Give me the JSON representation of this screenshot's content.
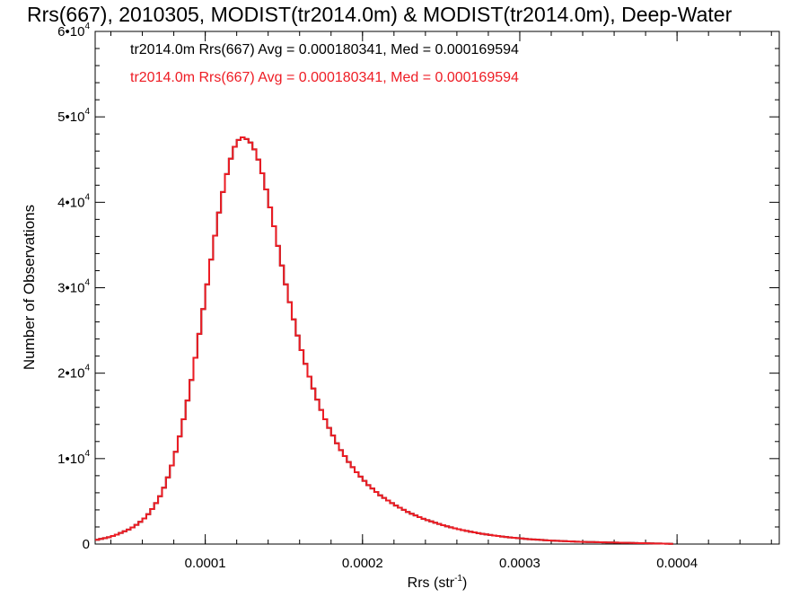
{
  "chart_data": {
    "type": "histogram",
    "title": "Rrs(667), 2010305, MODIST(tr2014.0m) & MODIST(tr2014.0m), Deep-Water",
    "xlabel_main": "Rrs (str",
    "xlabel_sup": "-1",
    "xlabel_close": ")",
    "ylabel": "Number of Observations",
    "xlim": [
      3e-05,
      0.000465
    ],
    "ylim": [
      0,
      60000
    ],
    "xticks": [
      {
        "value": 0.0001,
        "label": "0.0001"
      },
      {
        "value": 0.0002,
        "label": "0.0002"
      },
      {
        "value": 0.0003,
        "label": "0.0003"
      },
      {
        "value": 0.0004,
        "label": "0.0004"
      }
    ],
    "yticks": [
      {
        "value": 0,
        "base": "0",
        "exp": ""
      },
      {
        "value": 10000,
        "base": "1•10",
        "exp": "4"
      },
      {
        "value": 20000,
        "base": "2•10",
        "exp": "4"
      },
      {
        "value": 30000,
        "base": "3•10",
        "exp": "4"
      },
      {
        "value": 40000,
        "base": "4•10",
        "exp": "4"
      },
      {
        "value": 50000,
        "base": "5•10",
        "exp": "4"
      },
      {
        "value": 60000,
        "base": "6•10",
        "exp": "4"
      }
    ],
    "legend_position": "top-left",
    "legend": [
      {
        "text": "tr2014.0m Rrs(667) Avg = 0.000180341, Med = 0.000169594",
        "color": "#000000"
      },
      {
        "text": "tr2014.0m Rrs(667) Avg = 0.000180341, Med = 0.000169594",
        "color": "#ee1c24"
      }
    ],
    "bin_width": 2.5e-06,
    "series": [
      {
        "color": "#000000",
        "bins_start": 3e-05,
        "values": [
          500,
          600,
          700,
          800,
          950,
          1100,
          1300,
          1500,
          1700,
          1950,
          2250,
          2600,
          3000,
          3500,
          4100,
          4800,
          5600,
          6600,
          7800,
          9200,
          10800,
          12600,
          14600,
          16800,
          19200,
          21800,
          24600,
          27500,
          30400,
          33300,
          36100,
          38800,
          41200,
          43300,
          45100,
          46500,
          47300,
          47600,
          47400,
          47000,
          46200,
          45000,
          43400,
          41500,
          39400,
          37200,
          34900,
          32600,
          30400,
          28300,
          26300,
          24400,
          22700,
          21100,
          19600,
          18200,
          16900,
          15700,
          14600,
          13600,
          12700,
          11800,
          11000,
          10300,
          9600,
          9000,
          8400,
          7900,
          7400,
          6900,
          6500,
          6100,
          5700,
          5400,
          5100,
          4800,
          4500,
          4250,
          4000,
          3750,
          3550,
          3350,
          3150,
          2950,
          2800,
          2650,
          2500,
          2350,
          2200,
          2080,
          1960,
          1840,
          1730,
          1630,
          1540,
          1450,
          1360,
          1280,
          1200,
          1130,
          1060,
          1000,
          940,
          880,
          830,
          780,
          730,
          690,
          650,
          610,
          570,
          540,
          510,
          480,
          450,
          420,
          400,
          380,
          360,
          340,
          320,
          300,
          280,
          260,
          250,
          240,
          230,
          220,
          210,
          200,
          190,
          180,
          170,
          160,
          150,
          140,
          130,
          120,
          110,
          100,
          90,
          80,
          70,
          60,
          50,
          40,
          30
        ]
      },
      {
        "color": "#ee1c24",
        "bins_start": 3e-05,
        "values": [
          500,
          600,
          700,
          800,
          950,
          1100,
          1300,
          1500,
          1700,
          1950,
          2250,
          2600,
          3000,
          3500,
          4100,
          4800,
          5600,
          6600,
          7800,
          9200,
          10800,
          12600,
          14600,
          16800,
          19200,
          21800,
          24600,
          27500,
          30400,
          33300,
          36100,
          38800,
          41200,
          43300,
          45100,
          46500,
          47300,
          47600,
          47400,
          47000,
          46200,
          45000,
          43400,
          41500,
          39400,
          37200,
          34900,
          32600,
          30400,
          28300,
          26300,
          24400,
          22700,
          21100,
          19600,
          18200,
          16900,
          15700,
          14600,
          13600,
          12700,
          11800,
          11000,
          10300,
          9600,
          9000,
          8400,
          7900,
          7400,
          6900,
          6500,
          6100,
          5700,
          5400,
          5100,
          4800,
          4500,
          4250,
          4000,
          3750,
          3550,
          3350,
          3150,
          2950,
          2800,
          2650,
          2500,
          2350,
          2200,
          2080,
          1960,
          1840,
          1730,
          1630,
          1540,
          1450,
          1360,
          1280,
          1200,
          1130,
          1060,
          1000,
          940,
          880,
          830,
          780,
          730,
          690,
          650,
          610,
          570,
          540,
          510,
          480,
          450,
          420,
          400,
          380,
          360,
          340,
          320,
          300,
          280,
          260,
          250,
          240,
          230,
          220,
          210,
          200,
          190,
          180,
          170,
          160,
          150,
          140,
          130,
          120,
          110,
          100,
          90,
          80,
          70,
          60,
          50,
          40,
          30
        ]
      }
    ]
  }
}
